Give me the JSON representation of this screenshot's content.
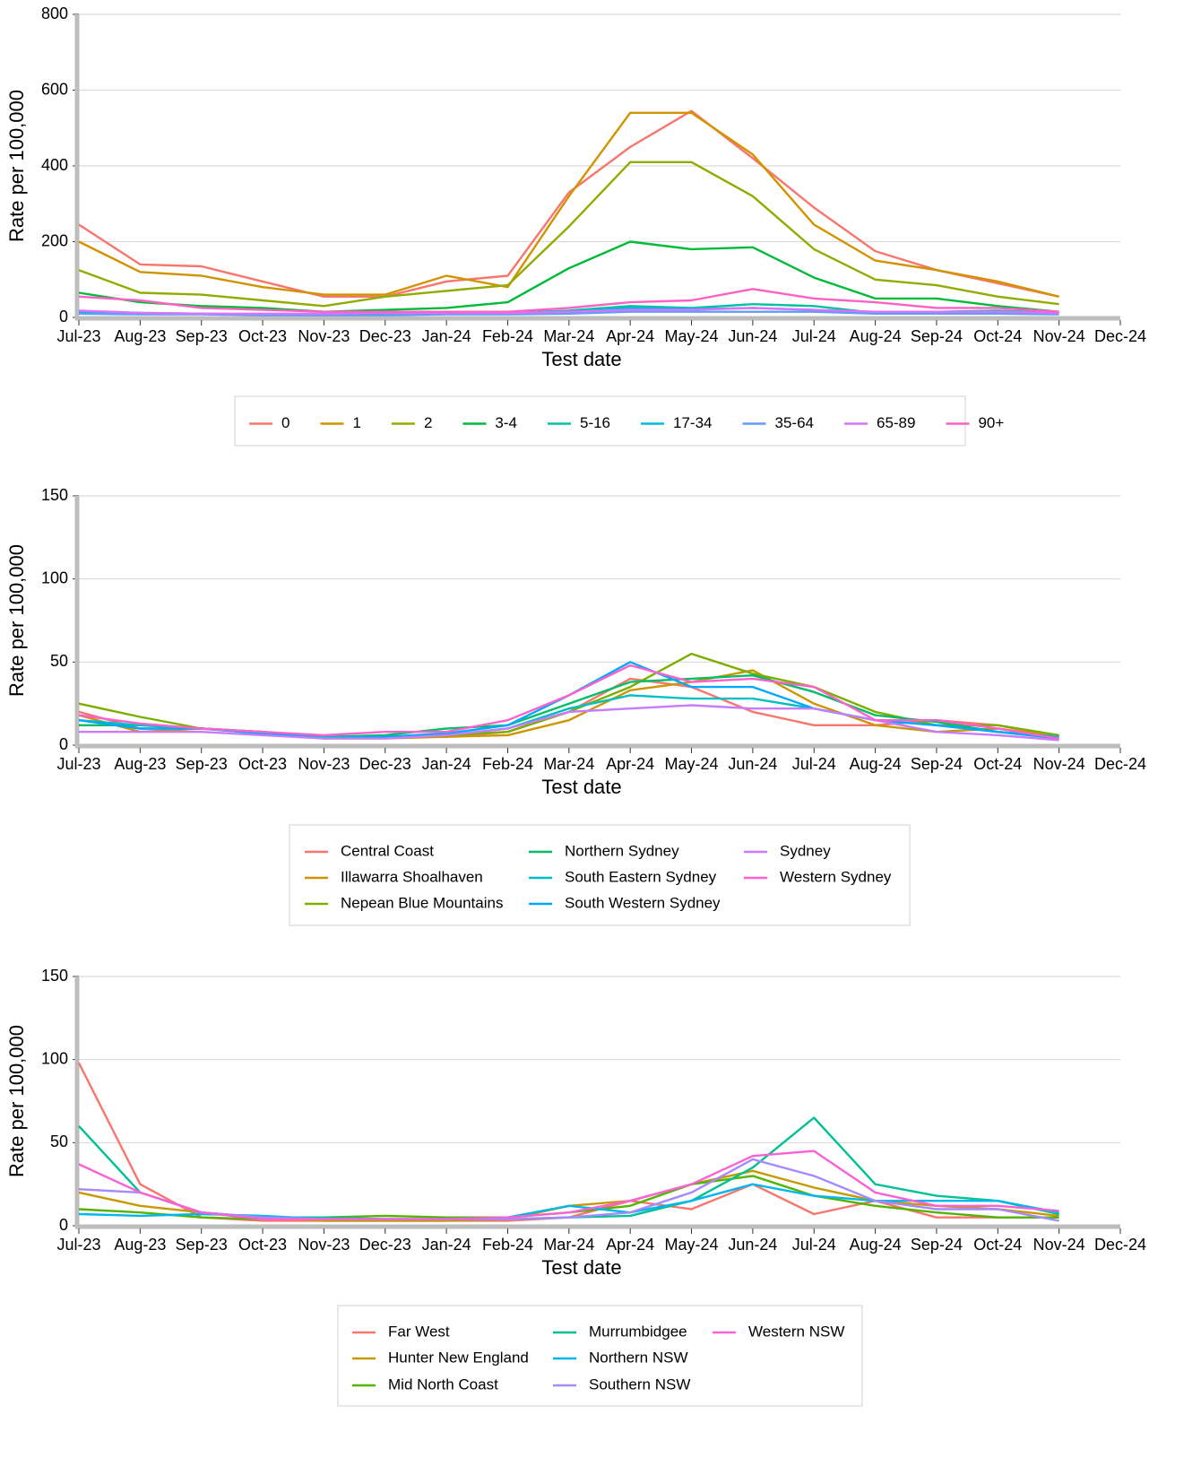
{
  "chart_data": [
    {
      "type": "line",
      "x_label": "Test date",
      "y_label": "Rate per 100,000",
      "categories": [
        "Jul-23",
        "Aug-23",
        "Sep-23",
        "Oct-23",
        "Nov-23",
        "Dec-23",
        "Jan-24",
        "Feb-24",
        "Mar-24",
        "Apr-24",
        "May-24",
        "Jun-24",
        "Jul-24",
        "Aug-24",
        "Sep-24",
        "Oct-24",
        "Nov-24",
        "Dec-24"
      ],
      "ylim": [
        0,
        800
      ],
      "yticks": [
        0,
        200,
        400,
        600,
        800
      ],
      "grid": true,
      "legend": "bottom",
      "series": [
        {
          "name": "0",
          "color": "#F8766D",
          "values": [
            245,
            140,
            135,
            95,
            55,
            55,
            95,
            110,
            330,
            450,
            545,
            420,
            290,
            175,
            125,
            90,
            55,
            null
          ]
        },
        {
          "name": "1",
          "color": "#D39200",
          "values": [
            200,
            120,
            110,
            80,
            60,
            60,
            110,
            80,
            320,
            540,
            540,
            430,
            245,
            150,
            125,
            95,
            55,
            null
          ]
        },
        {
          "name": "2",
          "color": "#93AA00",
          "values": [
            125,
            65,
            60,
            45,
            30,
            55,
            70,
            85,
            240,
            410,
            410,
            320,
            180,
            100,
            85,
            55,
            35,
            null
          ]
        },
        {
          "name": "3-4",
          "color": "#00BA38",
          "values": [
            65,
            40,
            30,
            25,
            15,
            20,
            25,
            40,
            130,
            200,
            180,
            185,
            105,
            50,
            50,
            30,
            15,
            null
          ]
        },
        {
          "name": "5-16",
          "color": "#00C19F",
          "values": [
            15,
            12,
            10,
            8,
            8,
            8,
            10,
            12,
            18,
            30,
            25,
            35,
            30,
            12,
            15,
            18,
            12,
            null
          ]
        },
        {
          "name": "17-34",
          "color": "#00B9E3",
          "values": [
            15,
            10,
            10,
            8,
            8,
            8,
            10,
            10,
            15,
            25,
            22,
            25,
            20,
            10,
            12,
            12,
            10,
            null
          ]
        },
        {
          "name": "35-64",
          "color": "#619CFF",
          "values": [
            10,
            8,
            8,
            6,
            6,
            6,
            8,
            8,
            10,
            15,
            15,
            15,
            15,
            10,
            10,
            10,
            8,
            null
          ]
        },
        {
          "name": "65-89",
          "color": "#DB72FB",
          "values": [
            18,
            12,
            10,
            10,
            10,
            12,
            12,
            12,
            15,
            20,
            20,
            25,
            20,
            15,
            15,
            15,
            12,
            null
          ]
        },
        {
          "name": "90+",
          "color": "#FF61C3",
          "values": [
            55,
            45,
            25,
            20,
            15,
            15,
            15,
            15,
            25,
            40,
            45,
            75,
            50,
            40,
            25,
            25,
            15,
            null
          ]
        }
      ]
    },
    {
      "type": "line",
      "x_label": "Test date",
      "y_label": "Rate per 100,000",
      "categories": [
        "Jul-23",
        "Aug-23",
        "Sep-23",
        "Oct-23",
        "Nov-23",
        "Dec-23",
        "Jan-24",
        "Feb-24",
        "Mar-24",
        "Apr-24",
        "May-24",
        "Jun-24",
        "Jul-24",
        "Aug-24",
        "Sep-24",
        "Oct-24",
        "Nov-24",
        "Dec-24"
      ],
      "ylim": [
        0,
        150
      ],
      "yticks": [
        0,
        50,
        100,
        150
      ],
      "grid": true,
      "legend": "bottom",
      "series": [
        {
          "name": "Central Coast",
          "color": "#F8766D",
          "values": [
            20,
            10,
            10,
            8,
            5,
            5,
            5,
            8,
            20,
            40,
            35,
            20,
            12,
            12,
            15,
            12,
            5,
            null
          ]
        },
        {
          "name": "Illawarra Shoalhaven",
          "color": "#CD9600",
          "values": [
            18,
            8,
            10,
            8,
            4,
            4,
            5,
            6,
            15,
            33,
            38,
            45,
            25,
            12,
            8,
            10,
            5,
            null
          ]
        },
        {
          "name": "Nepean Blue Mountains",
          "color": "#7CAE00",
          "values": [
            25,
            17,
            10,
            8,
            5,
            5,
            6,
            8,
            20,
            35,
            55,
            43,
            35,
            20,
            12,
            12,
            6,
            null
          ]
        },
        {
          "name": "Northern Sydney",
          "color": "#00BE67",
          "values": [
            12,
            12,
            10,
            7,
            5,
            6,
            10,
            12,
            25,
            38,
            40,
            42,
            32,
            18,
            14,
            8,
            5,
            null
          ]
        },
        {
          "name": "South Eastern Sydney",
          "color": "#00BFC4",
          "values": [
            15,
            12,
            10,
            8,
            5,
            5,
            6,
            10,
            22,
            30,
            28,
            28,
            22,
            15,
            12,
            8,
            5,
            null
          ]
        },
        {
          "name": "South Western Sydney",
          "color": "#00A9FF",
          "values": [
            15,
            10,
            10,
            7,
            4,
            5,
            7,
            12,
            30,
            50,
            35,
            35,
            22,
            15,
            12,
            8,
            4,
            null
          ]
        },
        {
          "name": "Sydney",
          "color": "#C77CFF",
          "values": [
            8,
            8,
            8,
            6,
            4,
            4,
            6,
            10,
            20,
            22,
            24,
            22,
            22,
            15,
            8,
            6,
            3,
            null
          ]
        },
        {
          "name": "Western Sydney",
          "color": "#FF61CC",
          "values": [
            18,
            13,
            10,
            8,
            6,
            8,
            8,
            15,
            30,
            48,
            38,
            40,
            35,
            15,
            15,
            10,
            4,
            null
          ]
        }
      ]
    },
    {
      "type": "line",
      "x_label": "Test date",
      "y_label": "Rate per 100,000",
      "categories": [
        "Jul-23",
        "Aug-23",
        "Sep-23",
        "Oct-23",
        "Nov-23",
        "Dec-23",
        "Jan-24",
        "Feb-24",
        "Mar-24",
        "Apr-24",
        "May-24",
        "Jun-24",
        "Jul-24",
        "Aug-24",
        "Sep-24",
        "Oct-24",
        "Nov-24",
        "Dec-24"
      ],
      "ylim": [
        0,
        150
      ],
      "yticks": [
        0,
        50,
        100,
        150
      ],
      "grid": true,
      "legend": "bottom",
      "series": [
        {
          "name": "Far West",
          "color": "#F8766D",
          "values": [
            98,
            25,
            5,
            3,
            3,
            3,
            3,
            3,
            5,
            15,
            10,
            25,
            7,
            15,
            5,
            5,
            5,
            null
          ]
        },
        {
          "name": "Hunter New England",
          "color": "#C49A00",
          "values": [
            20,
            12,
            8,
            5,
            3,
            3,
            3,
            4,
            12,
            15,
            25,
            33,
            23,
            15,
            12,
            10,
            6,
            null
          ]
        },
        {
          "name": "Mid North Coast",
          "color": "#53B400",
          "values": [
            10,
            8,
            5,
            4,
            5,
            6,
            5,
            5,
            8,
            12,
            25,
            30,
            18,
            12,
            8,
            5,
            5,
            null
          ]
        },
        {
          "name": "Murrumbidgee",
          "color": "#00C094",
          "values": [
            60,
            20,
            8,
            5,
            5,
            4,
            4,
            4,
            5,
            6,
            15,
            35,
            65,
            25,
            18,
            15,
            7,
            null
          ]
        },
        {
          "name": "Northern NSW",
          "color": "#00B6EB",
          "values": [
            7,
            6,
            7,
            6,
            4,
            4,
            4,
            5,
            12,
            8,
            15,
            25,
            18,
            15,
            15,
            15,
            8,
            null
          ]
        },
        {
          "name": "Southern NSW",
          "color": "#A58AFF",
          "values": [
            22,
            20,
            8,
            5,
            4,
            4,
            4,
            4,
            5,
            8,
            20,
            40,
            30,
            15,
            10,
            10,
            3,
            null
          ]
        },
        {
          "name": "Western NSW",
          "color": "#FB61D7",
          "values": [
            37,
            20,
            8,
            4,
            4,
            4,
            4,
            5,
            8,
            15,
            25,
            42,
            45,
            20,
            12,
            12,
            9,
            null
          ]
        }
      ]
    }
  ]
}
